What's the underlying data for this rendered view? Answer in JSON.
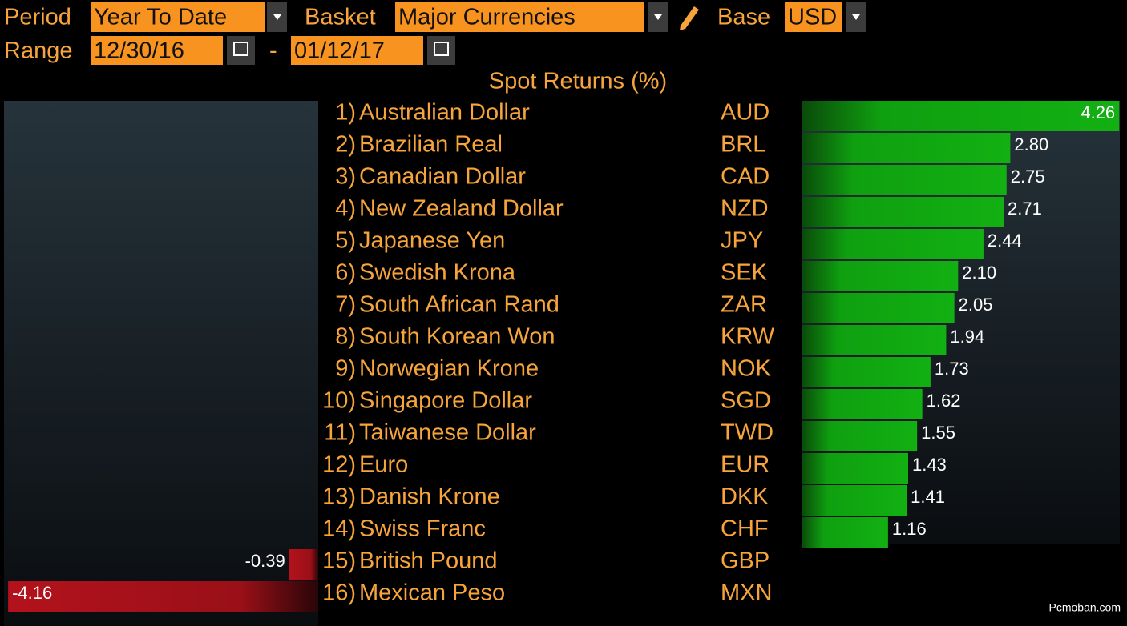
{
  "controls": {
    "period_label": "Period",
    "period_value": "Year To Date",
    "basket_label": "Basket",
    "basket_value": "Major Currencies",
    "base_label": "Base",
    "base_value": "USD",
    "range_label": "Range",
    "range_start": "12/30/16",
    "range_separator": "-",
    "range_end": "01/12/17"
  },
  "title": "Spot Returns (%)",
  "rows": [
    {
      "rank": "1)",
      "name": "Australian Dollar",
      "code": "AUD",
      "value": 4.26
    },
    {
      "rank": "2)",
      "name": "Brazilian Real",
      "code": "BRL",
      "value": 2.8,
      "value_label": "2.80"
    },
    {
      "rank": "3)",
      "name": "Canadian Dollar",
      "code": "CAD",
      "value": 2.75
    },
    {
      "rank": "4)",
      "name": "New Zealand Dollar",
      "code": "NZD",
      "value": 2.71
    },
    {
      "rank": "5)",
      "name": "Japanese Yen",
      "code": "JPY",
      "value": 2.44
    },
    {
      "rank": "6)",
      "name": "Swedish Krona",
      "code": "SEK",
      "value": 2.1,
      "value_label": "2.10"
    },
    {
      "rank": "7)",
      "name": "South African Rand",
      "code": "ZAR",
      "value": 2.05
    },
    {
      "rank": "8)",
      "name": "South Korean Won",
      "code": "KRW",
      "value": 1.94
    },
    {
      "rank": "9)",
      "name": "Norwegian Krone",
      "code": "NOK",
      "value": 1.73
    },
    {
      "rank": "10)",
      "name": "Singapore Dollar",
      "code": "SGD",
      "value": 1.62
    },
    {
      "rank": "11)",
      "name": "Taiwanese Dollar",
      "code": "TWD",
      "value": 1.55
    },
    {
      "rank": "12)",
      "name": "Euro",
      "code": "EUR",
      "value": 1.43
    },
    {
      "rank": "13)",
      "name": "Danish Krone",
      "code": "DKK",
      "value": 1.41
    },
    {
      "rank": "14)",
      "name": "Swiss Franc",
      "code": "CHF",
      "value": 1.16
    },
    {
      "rank": "15)",
      "name": "British Pound",
      "code": "GBP",
      "value": -0.39
    },
    {
      "rank": "16)",
      "name": "Mexican Peso",
      "code": "MXN",
      "value": -4.16
    }
  ],
  "watermark": "Pcmoban.com"
}
